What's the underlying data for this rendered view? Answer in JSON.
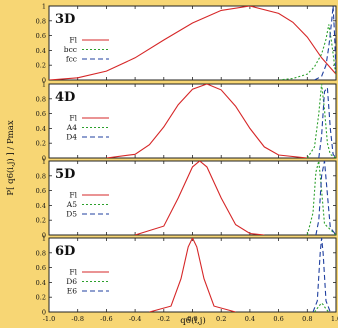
{
  "colors": {
    "background": "#f7d674",
    "panel": "#ffffff",
    "fl": "#d62728",
    "second": "#2ca02c",
    "third": "#1f3f9f"
  },
  "chart_data": {
    "type": "line",
    "ylabel": "P[ q6(i,j) ] / Pmax",
    "xlabel": "q6(i,j)",
    "xlim": [
      -1.0,
      1.0
    ],
    "ylim": [
      0,
      1
    ],
    "x_ticks": [
      "-1.0",
      "-0.8",
      "-0.6",
      "-0.4",
      "-0.2",
      "0.0",
      "0.2",
      "0.4",
      "0.6",
      "0.8",
      "1.0"
    ],
    "y_ticks": [
      "0",
      "0.2",
      "0.4",
      "0.6",
      "0.8",
      "1"
    ],
    "grid": false,
    "legend": "left",
    "panels": [
      {
        "title": "3D",
        "series": [
          {
            "name": "Fl",
            "style": "solid",
            "x": [
              -1.0,
              -0.8,
              -0.6,
              -0.4,
              -0.2,
              0.0,
              0.2,
              0.4,
              0.6,
              0.7,
              0.8,
              0.9,
              1.0
            ],
            "y": [
              0.0,
              0.03,
              0.12,
              0.3,
              0.54,
              0.77,
              0.94,
              1.0,
              0.9,
              0.78,
              0.58,
              0.3,
              0.08
            ]
          },
          {
            "name": "bcc",
            "style": "dotted",
            "x": [
              0.6,
              0.7,
              0.8,
              0.85,
              0.9,
              0.93,
              0.95,
              0.97,
              1.0
            ],
            "y": [
              0.0,
              0.02,
              0.08,
              0.18,
              0.35,
              0.55,
              0.75,
              0.5,
              0.05
            ]
          },
          {
            "name": "fcc",
            "style": "dashed",
            "x": [
              0.85,
              0.9,
              0.93,
              0.95,
              0.97,
              0.98,
              0.99,
              1.0
            ],
            "y": [
              0.0,
              0.05,
              0.2,
              0.45,
              0.8,
              1.0,
              0.6,
              0.1
            ]
          }
        ]
      },
      {
        "title": "4D",
        "series": [
          {
            "name": "Fl",
            "style": "solid",
            "x": [
              -0.6,
              -0.4,
              -0.3,
              -0.2,
              -0.1,
              0.0,
              0.1,
              0.2,
              0.3,
              0.4,
              0.5,
              0.6,
              0.8
            ],
            "y": [
              0.0,
              0.05,
              0.18,
              0.42,
              0.72,
              0.93,
              1.0,
              0.92,
              0.7,
              0.4,
              0.15,
              0.04,
              0.0
            ]
          },
          {
            "name": "A4",
            "style": "dotted",
            "x": [
              0.8,
              0.85,
              0.88,
              0.9,
              0.92,
              0.94,
              0.96,
              1.0
            ],
            "y": [
              0.0,
              0.15,
              0.6,
              1.0,
              0.65,
              0.2,
              0.05,
              0.0
            ]
          },
          {
            "name": "D4",
            "style": "dashed",
            "x": [
              0.88,
              0.9,
              0.92,
              0.94,
              0.96,
              0.98,
              1.0
            ],
            "y": [
              0.0,
              0.3,
              0.9,
              0.95,
              0.4,
              0.05,
              0.0
            ]
          }
        ]
      },
      {
        "title": "5D",
        "series": [
          {
            "name": "Fl",
            "style": "solid",
            "x": [
              -0.4,
              -0.2,
              -0.1,
              0.0,
              0.05,
              0.1,
              0.2,
              0.3,
              0.4,
              0.5
            ],
            "y": [
              0.0,
              0.12,
              0.5,
              0.92,
              1.0,
              0.92,
              0.5,
              0.14,
              0.02,
              0.0
            ]
          },
          {
            "name": "A5",
            "style": "dotted",
            "x": [
              0.8,
              0.84,
              0.86,
              0.88,
              0.9,
              0.92,
              1.0
            ],
            "y": [
              0.0,
              0.3,
              0.85,
              1.0,
              0.6,
              0.15,
              0.0
            ]
          },
          {
            "name": "D5",
            "style": "dashed",
            "x": [
              0.86,
              0.88,
              0.9,
              0.92,
              0.94,
              0.96,
              1.0
            ],
            "y": [
              0.0,
              0.2,
              0.8,
              1.0,
              0.55,
              0.1,
              0.0
            ]
          }
        ]
      },
      {
        "title": "6D",
        "series": [
          {
            "name": "Fl",
            "style": "solid",
            "x": [
              -0.3,
              -0.15,
              -0.08,
              -0.03,
              0.0,
              0.03,
              0.08,
              0.15,
              0.3
            ],
            "y": [
              0.0,
              0.08,
              0.45,
              0.88,
              1.0,
              0.88,
              0.45,
              0.08,
              0.0
            ]
          },
          {
            "name": "D6",
            "style": "dotted",
            "x": [
              0.85,
              0.87,
              0.89,
              0.9,
              0.91,
              0.93,
              0.95
            ],
            "y": [
              0.0,
              0.05,
              0.1,
              0.12,
              0.1,
              0.04,
              0.0
            ]
          },
          {
            "name": "E6",
            "style": "dashed",
            "x": [
              0.84,
              0.87,
              0.89,
              0.9,
              0.91,
              0.93,
              0.96
            ],
            "y": [
              0.0,
              0.15,
              0.8,
              1.0,
              0.8,
              0.15,
              0.0
            ]
          }
        ]
      }
    ]
  }
}
